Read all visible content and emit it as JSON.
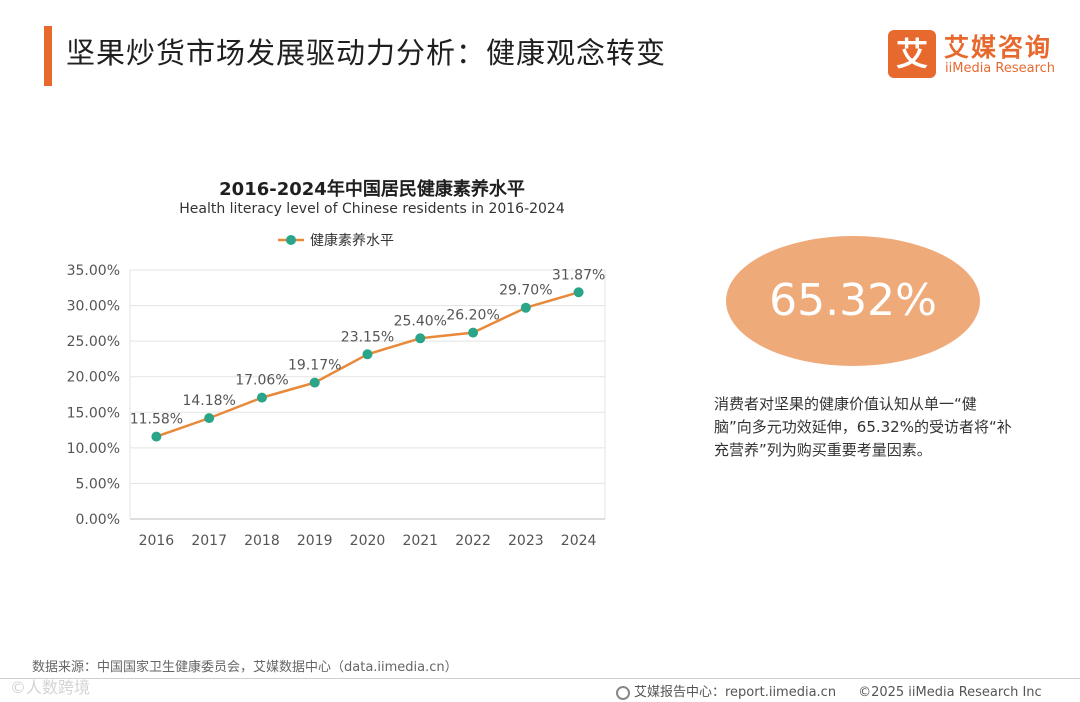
{
  "page": {
    "title": "坚果炒货市场发展驱动力分析：健康观念转变",
    "accent_color": "#e8692e"
  },
  "logo": {
    "mark": "艾",
    "name_cn": "艾媒咨询",
    "name_en": "iiMedia Research"
  },
  "chart_data": {
    "type": "line",
    "title": "2016-2024年中国居民健康素养水平",
    "subtitle": "Health literacy level of Chinese residents in 2016-2024",
    "categories": [
      "2016",
      "2017",
      "2018",
      "2019",
      "2020",
      "2021",
      "2022",
      "2023",
      "2024"
    ],
    "series": [
      {
        "name": "健康素养水平",
        "values": [
          11.58,
          14.18,
          17.06,
          19.17,
          23.15,
          25.4,
          26.2,
          29.7,
          31.87
        ],
        "data_labels": [
          "11.58%",
          "14.18%",
          "17.06%",
          "19.17%",
          "23.15%",
          "25.40%",
          "26.20%",
          "29.70%",
          "31.87%"
        ],
        "line_color": "#e8893a",
        "marker_color": "#2aa58a"
      }
    ],
    "ylim": [
      0,
      35
    ],
    "yticks": [
      0,
      5,
      10,
      15,
      20,
      25,
      30,
      35
    ],
    "ytick_labels": [
      "0.00%",
      "5.00%",
      "10.00%",
      "15.00%",
      "20.00%",
      "25.00%",
      "30.00%",
      "35.00%"
    ],
    "grid": true,
    "legend_position": "top"
  },
  "highlight": {
    "value": "65.32%",
    "color": "#efaa7a"
  },
  "insight": {
    "text": "消费者对坚果的健康价值认知从单一“健脑”向多元功效延伸，65.32%的受访者将“补充营养”列为购买重要考量因素。"
  },
  "source": {
    "text": "数据来源：中国国家卫生健康委员会，艾媒数据中心（data.iimedia.cn）"
  },
  "watermark": {
    "text": "©人数跨境"
  },
  "footer": {
    "report_center": "艾媒报告中心：report.iimedia.cn",
    "copyright": "©2025  iiMedia Research  Inc"
  }
}
